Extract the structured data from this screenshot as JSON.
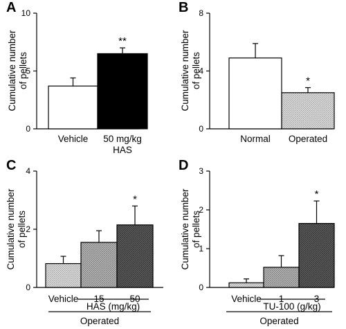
{
  "chart_data": [
    {
      "type": "bar",
      "panel_label": "A",
      "ylabel": [
        "Cumulative number",
        "of pellets"
      ],
      "ylim": [
        0,
        10
      ],
      "yticks": [
        "0",
        "5",
        "10"
      ],
      "categories": [
        "Vehicle",
        "50 mg/kg"
      ],
      "category_sublabels": [
        "",
        "HAS"
      ],
      "values": [
        3.7,
        6.5
      ],
      "errors": [
        0.7,
        0.5
      ],
      "fills": [
        "white",
        "black"
      ],
      "significance": [
        "",
        "**"
      ]
    },
    {
      "type": "bar",
      "panel_label": "B",
      "ylabel": [
        "Cumulative number",
        "of pellets"
      ],
      "ylim": [
        0,
        8
      ],
      "yticks": [
        "0",
        "4",
        "8"
      ],
      "categories": [
        "Normal",
        "Operated"
      ],
      "values": [
        4.9,
        2.5
      ],
      "errors": [
        1.0,
        0.35
      ],
      "fills": [
        "white",
        "lightgray"
      ],
      "significance": [
        "",
        "*"
      ]
    },
    {
      "type": "bar",
      "panel_label": "C",
      "ylabel": [
        "Cumulative number",
        "of pellets"
      ],
      "ylim": [
        0,
        4
      ],
      "yticks": [
        "0",
        "2",
        "4"
      ],
      "categories": [
        "Vehicle",
        "15",
        "50"
      ],
      "group_label": "HAS (mg/kg)",
      "footer_label": "Operated",
      "values": [
        0.82,
        1.55,
        2.15
      ],
      "errors": [
        0.25,
        0.4,
        0.65
      ],
      "fills": [
        "lightgray",
        "midgray",
        "darkgray"
      ],
      "significance": [
        "",
        "",
        "*"
      ]
    },
    {
      "type": "bar",
      "panel_label": "D",
      "ylabel": [
        "Cumulative number",
        "of pellets"
      ],
      "ylim": [
        0,
        3
      ],
      "yticks": [
        "0",
        "1",
        "2",
        "3"
      ],
      "categories": [
        "Vehicle",
        "1",
        "3"
      ],
      "group_label": "TU-100 (g/kg)",
      "footer_label": "Operated",
      "values": [
        0.12,
        0.52,
        1.65
      ],
      "errors": [
        0.1,
        0.3,
        0.58
      ],
      "fills": [
        "lightgray",
        "midgray",
        "darkgray"
      ],
      "significance": [
        "",
        "",
        "*"
      ]
    }
  ]
}
